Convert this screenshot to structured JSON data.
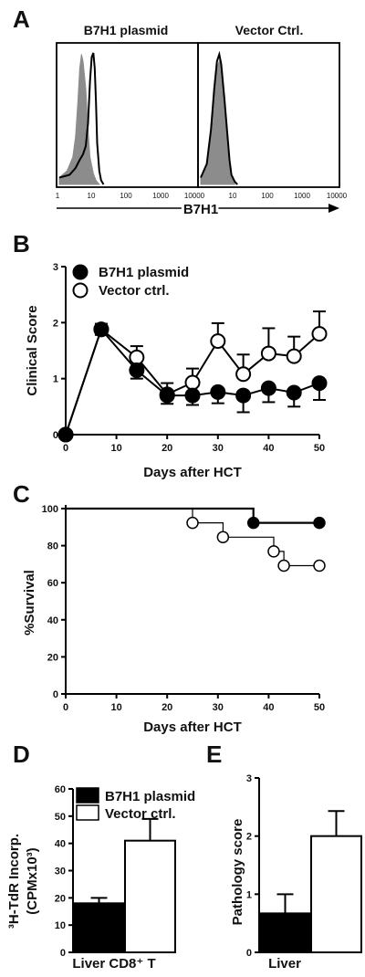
{
  "chart_data": [
    {
      "panel": "A",
      "type": "area",
      "subplots": [
        {
          "title": "B7H1 plasmid",
          "x_ticks": [
            "1",
            "10",
            "100",
            "1000",
            "10000"
          ],
          "series": [
            {
              "fill": "#8c8c8c",
              "x": [
                1,
                1.7,
                2.5,
                3,
                3.5,
                4,
                4.5,
                5,
                6,
                7,
                8,
                10,
                12,
                15
              ],
              "y": [
                0.05,
                0.1,
                0.2,
                0.35,
                0.6,
                0.85,
                0.95,
                0.9,
                0.7,
                0.4,
                0.2,
                0.08,
                0.03,
                0
              ]
            },
            {
              "line": "#000000",
              "x": [
                1,
                2,
                3,
                4,
                5,
                6,
                7,
                8,
                9,
                10,
                11,
                12,
                13,
                15,
                17,
                20
              ],
              "y": [
                0.05,
                0.07,
                0.12,
                0.18,
                0.22,
                0.28,
                0.45,
                0.75,
                0.93,
                0.96,
                0.85,
                0.6,
                0.3,
                0.1,
                0.03,
                0
              ]
            }
          ]
        },
        {
          "title": "Vector Ctrl.",
          "x_ticks": [
            "10",
            "100",
            "1000",
            "10000"
          ],
          "series": [
            {
              "fill": "#8c8c8c",
              "x": [
                1,
                1.5,
                2,
                2.5,
                3,
                3.5,
                4,
                5,
                6,
                7,
                8,
                10
              ],
              "y": [
                0.05,
                0.15,
                0.35,
                0.65,
                0.85,
                0.9,
                0.85,
                0.6,
                0.35,
                0.15,
                0.05,
                0
              ]
            },
            {
              "line": "#000000",
              "x": [
                1,
                1.5,
                2,
                2.5,
                3,
                3.5,
                4,
                5,
                6,
                7,
                8,
                10,
                12
              ],
              "y": [
                0.05,
                0.15,
                0.4,
                0.7,
                0.9,
                0.95,
                0.88,
                0.62,
                0.38,
                0.18,
                0.07,
                0.02,
                0
              ]
            }
          ]
        }
      ],
      "xlabel": "B7H1"
    },
    {
      "panel": "B",
      "type": "line",
      "x": [
        0,
        7,
        14,
        20,
        25,
        30,
        35,
        40,
        45,
        50
      ],
      "x_ticks": [
        0,
        10,
        20,
        30,
        40,
        50
      ],
      "y_ticks": [
        0,
        1,
        2,
        3
      ],
      "xlim": [
        0,
        50
      ],
      "ylim": [
        0,
        3
      ],
      "xlabel": "Days after HCT",
      "ylabel": "Clinical Score",
      "legend": "top-left",
      "series": [
        {
          "name": "B7H1 plasmid",
          "marker": "filled",
          "values": [
            0,
            1.88,
            1.15,
            0.7,
            0.7,
            0.76,
            0.7,
            0.83,
            0.75,
            0.92
          ],
          "err": [
            0,
            0.1,
            0.15,
            0.15,
            0.17,
            0.2,
            0.3,
            0.25,
            0.25,
            0.3
          ]
        },
        {
          "name": "Vector ctrl.",
          "marker": "open",
          "values": [
            0,
            1.88,
            1.38,
            0.72,
            0.93,
            1.67,
            1.08,
            1.45,
            1.4,
            1.8
          ],
          "err": [
            0,
            0.1,
            0.2,
            0.2,
            0.25,
            0.32,
            0.35,
            0.45,
            0.35,
            0.4
          ]
        }
      ]
    },
    {
      "panel": "C",
      "type": "line",
      "x_ticks": [
        0,
        10,
        20,
        30,
        40,
        50
      ],
      "y_ticks": [
        0,
        20,
        40,
        60,
        80,
        100
      ],
      "xlim": [
        0,
        50
      ],
      "ylim": [
        0,
        100
      ],
      "xlabel": "Days after HCT",
      "ylabel": "%Survival",
      "series": [
        {
          "marker": "filled",
          "step_x": [
            0,
            37,
            50
          ],
          "step_y": [
            100,
            92.3,
            92.3
          ],
          "markers_x": [
            37,
            50
          ],
          "markers_y": [
            92.3,
            92.3
          ]
        },
        {
          "marker": "open",
          "step_x": [
            0,
            25,
            31,
            41,
            43,
            50
          ],
          "step_y": [
            100,
            92.3,
            84.6,
            76.9,
            69.2,
            69.2
          ],
          "markers_x": [
            25,
            31,
            41,
            43,
            50
          ],
          "markers_y": [
            92.3,
            84.6,
            76.9,
            69.2,
            69.2
          ]
        }
      ]
    },
    {
      "panel": "D",
      "type": "bar",
      "categories": [
        "Liver CD8⁺ T"
      ],
      "y_ticks": [
        0,
        10,
        20,
        30,
        40,
        50,
        60
      ],
      "ylim": [
        0,
        60
      ],
      "ylabel_line1": "³H-TdR Incorp.",
      "ylabel_line2": "(CPMx10³)",
      "legend": "top-right",
      "series": [
        {
          "name": "B7H1 plasmid",
          "fill": "#000000",
          "values": [
            18
          ],
          "err": [
            2
          ]
        },
        {
          "name": "Vector ctrl.",
          "fill": "#ffffff",
          "values": [
            41
          ],
          "err": [
            8
          ]
        }
      ]
    },
    {
      "panel": "E",
      "type": "bar",
      "categories": [
        "Liver"
      ],
      "y_ticks": [
        0,
        1,
        2,
        3
      ],
      "ylim": [
        0,
        3
      ],
      "ylabel": "Pathology score",
      "series": [
        {
          "fill": "#000000",
          "values": [
            0.67
          ],
          "err": [
            0.33
          ]
        },
        {
          "fill": "#ffffff",
          "values": [
            2.0
          ],
          "err": [
            0.43
          ]
        }
      ]
    }
  ]
}
